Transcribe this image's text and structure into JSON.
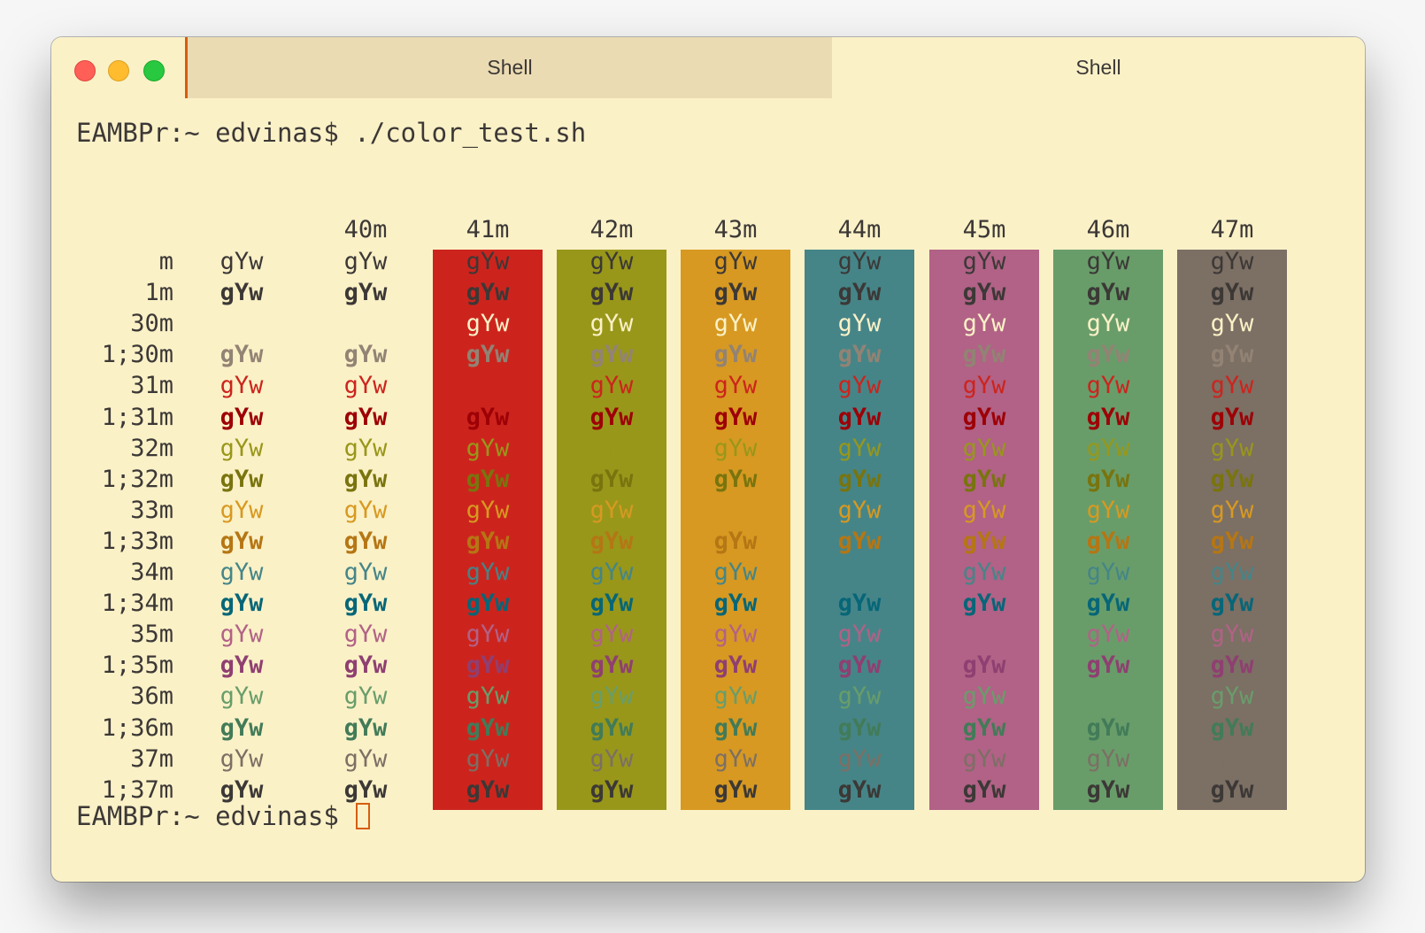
{
  "window": {
    "tabs": [
      {
        "label": "Shell",
        "active": true
      },
      {
        "label": "Shell",
        "active": false
      }
    ]
  },
  "terminal": {
    "prompt": "EAMBPr:~ edvinas$",
    "command": "./color_test.sh",
    "sample_text": "gYw",
    "column_headers": [
      "",
      "40m",
      "41m",
      "42m",
      "43m",
      "44m",
      "45m",
      "46m",
      "47m"
    ],
    "row_labels": [
      "m",
      "1m",
      "30m",
      "1;30m",
      "31m",
      "1;31m",
      "32m",
      "1;32m",
      "33m",
      "1;33m",
      "34m",
      "1;34m",
      "35m",
      "1;35m",
      "36m",
      "1;36m",
      "37m",
      "1;37m"
    ]
  },
  "palette": {
    "background": "#fbf1c7",
    "foreground": "#3c3836",
    "normal": [
      "#fbf1c7",
      "#cc241d",
      "#98971a",
      "#d79921",
      "#458588",
      "#b16286",
      "#689d6a",
      "#7c6f64"
    ],
    "bright": [
      "#928374",
      "#9d0006",
      "#79740e",
      "#b57614",
      "#076678",
      "#8f3f71",
      "#427b58",
      "#3c3836"
    ],
    "cursor": "#d65d0e"
  }
}
